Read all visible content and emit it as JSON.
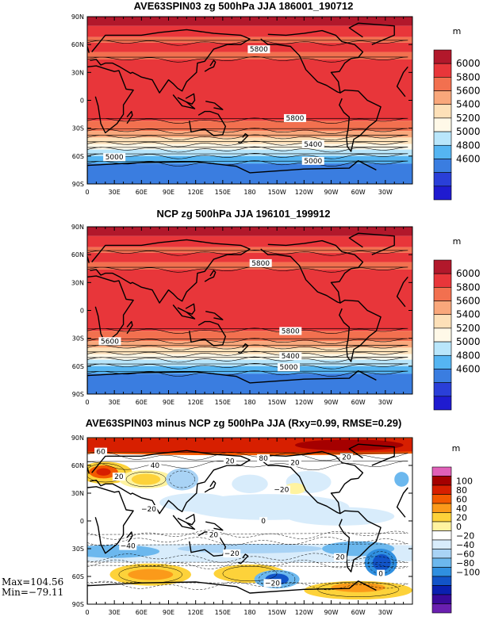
{
  "panels": [
    {
      "title": "AVE63SPIN03 zg 500hPa JJA 186001_190712",
      "unit": "m",
      "colorbar_labels": [
        "6000",
        "5800",
        "5600",
        "5400",
        "5200",
        "5000",
        "4800",
        "4600"
      ],
      "colorbar_colors": [
        "#b2182b",
        "#e8363a",
        "#f2704f",
        "#f9a77b",
        "#fde0b8",
        "#fff9e8",
        "#b9e6fb",
        "#55b5f2",
        "#3a7de0",
        "#2a3fd8",
        "#1f1bd0"
      ],
      "contour_labels": [
        "5800",
        "5800",
        "5400",
        "5000",
        "5000"
      ]
    },
    {
      "title": "NCP zg 500hPa JJA 196101_199912",
      "unit": "m",
      "colorbar_labels": [
        "6000",
        "5800",
        "5600",
        "5400",
        "5200",
        "5000",
        "4800",
        "4600"
      ],
      "colorbar_colors": [
        "#b2182b",
        "#e8363a",
        "#f2704f",
        "#f9a77b",
        "#fde0b8",
        "#fff9e8",
        "#b9e6fb",
        "#55b5f2",
        "#3a7de0",
        "#2a3fd8",
        "#1f1bd0"
      ],
      "contour_labels": [
        "5800",
        "5600",
        "5800",
        "5400",
        "5000"
      ]
    },
    {
      "title": "AVE63SPIN03 minus NCP zg 500hPa JJA (Rxy=0.99, RMSE=0.29)",
      "unit": "m",
      "colorbar_labels": [
        "100",
        "80",
        "60",
        "40",
        "20",
        "0",
        "−20",
        "−40",
        "−60",
        "−80",
        "−100"
      ],
      "colorbar_colors": [
        "#e060b8",
        "#a50000",
        "#d71f00",
        "#f35a00",
        "#fb9a1a",
        "#fdd23a",
        "#fff3a0",
        "#ffffff",
        "#d8ecfb",
        "#a9d3f5",
        "#6cb8ee",
        "#2f8fe0",
        "#1254c8",
        "#0a20b0",
        "#3a0a9a",
        "#6a1fb0"
      ],
      "contour_labels": [
        "60",
        "40",
        "20",
        "80",
        "20",
        "20",
        "20",
        "−20",
        "−20",
        "0",
        "−40",
        "20",
        "−20",
        "20",
        "−20",
        "0"
      ]
    }
  ],
  "lat_labels": [
    "90N",
    "60N",
    "30N",
    "0",
    "30S",
    "60S",
    "90S"
  ],
  "lon_labels": [
    "0",
    "30E",
    "60E",
    "90E",
    "120E",
    "150E",
    "180",
    "150W",
    "120W",
    "90W",
    "60W",
    "30W"
  ],
  "stats": {
    "max": "Max=104.56",
    "min": "Min=−79.11"
  }
}
